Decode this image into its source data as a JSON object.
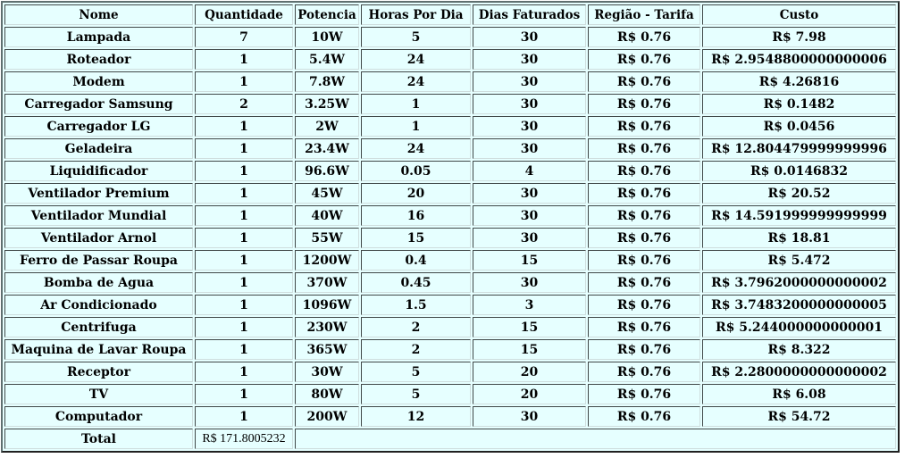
{
  "table": {
    "headers": [
      "Nome",
      "Quantidade",
      "Potencia",
      "Horas Por Dia",
      "Dias Faturados",
      "Região - Tarifa",
      "Custo"
    ],
    "rows": [
      {
        "nome": "Lampada",
        "quantidade": "7",
        "potencia": "10W",
        "horas": "5",
        "dias": "30",
        "tarifa": "R$ 0.76",
        "custo": "R$ 7.98"
      },
      {
        "nome": "Roteador",
        "quantidade": "1",
        "potencia": "5.4W",
        "horas": "24",
        "dias": "30",
        "tarifa": "R$ 0.76",
        "custo": "R$ 2.9548800000000006"
      },
      {
        "nome": "Modem",
        "quantidade": "1",
        "potencia": "7.8W",
        "horas": "24",
        "dias": "30",
        "tarifa": "R$ 0.76",
        "custo": "R$ 4.26816"
      },
      {
        "nome": "Carregador Samsung",
        "quantidade": "2",
        "potencia": "3.25W",
        "horas": "1",
        "dias": "30",
        "tarifa": "R$ 0.76",
        "custo": "R$ 0.1482"
      },
      {
        "nome": "Carregador LG",
        "quantidade": "1",
        "potencia": "2W",
        "horas": "1",
        "dias": "30",
        "tarifa": "R$ 0.76",
        "custo": "R$ 0.0456"
      },
      {
        "nome": "Geladeira",
        "quantidade": "1",
        "potencia": "23.4W",
        "horas": "24",
        "dias": "30",
        "tarifa": "R$ 0.76",
        "custo": "R$ 12.804479999999996"
      },
      {
        "nome": "Liquidificador",
        "quantidade": "1",
        "potencia": "96.6W",
        "horas": "0.05",
        "dias": "4",
        "tarifa": "R$ 0.76",
        "custo": "R$ 0.0146832"
      },
      {
        "nome": "Ventilador Premium",
        "quantidade": "1",
        "potencia": "45W",
        "horas": "20",
        "dias": "30",
        "tarifa": "R$ 0.76",
        "custo": "R$ 20.52"
      },
      {
        "nome": "Ventilador Mundial",
        "quantidade": "1",
        "potencia": "40W",
        "horas": "16",
        "dias": "30",
        "tarifa": "R$ 0.76",
        "custo": "R$ 14.591999999999999"
      },
      {
        "nome": "Ventilador Arnol",
        "quantidade": "1",
        "potencia": "55W",
        "horas": "15",
        "dias": "30",
        "tarifa": "R$ 0.76",
        "custo": "R$ 18.81"
      },
      {
        "nome": "Ferro de Passar Roupa",
        "quantidade": "1",
        "potencia": "1200W",
        "horas": "0.4",
        "dias": "15",
        "tarifa": "R$ 0.76",
        "custo": "R$ 5.472"
      },
      {
        "nome": "Bomba de Agua",
        "quantidade": "1",
        "potencia": "370W",
        "horas": "0.45",
        "dias": "30",
        "tarifa": "R$ 0.76",
        "custo": "R$ 3.7962000000000002"
      },
      {
        "nome": "Ar Condicionado",
        "quantidade": "1",
        "potencia": "1096W",
        "horas": "1.5",
        "dias": "3",
        "tarifa": "R$ 0.76",
        "custo": "R$ 3.7483200000000005"
      },
      {
        "nome": "Centrifuga",
        "quantidade": "1",
        "potencia": "230W",
        "horas": "2",
        "dias": "15",
        "tarifa": "R$ 0.76",
        "custo": "R$ 5.244000000000001"
      },
      {
        "nome": "Maquina de Lavar Roupa",
        "quantidade": "1",
        "potencia": "365W",
        "horas": "2",
        "dias": "15",
        "tarifa": "R$ 0.76",
        "custo": "R$ 8.322"
      },
      {
        "nome": "Receptor",
        "quantidade": "1",
        "potencia": "30W",
        "horas": "5",
        "dias": "20",
        "tarifa": "R$ 0.76",
        "custo": "R$ 2.2800000000000002"
      },
      {
        "nome": "TV",
        "quantidade": "1",
        "potencia": "80W",
        "horas": "5",
        "dias": "20",
        "tarifa": "R$ 0.76",
        "custo": "R$ 6.08"
      },
      {
        "nome": "Computador",
        "quantidade": "1",
        "potencia": "200W",
        "horas": "12",
        "dias": "30",
        "tarifa": "R$ 0.76",
        "custo": "R$ 54.72"
      }
    ],
    "total": {
      "label": "Total",
      "value": "R$ 171.8005232"
    }
  }
}
